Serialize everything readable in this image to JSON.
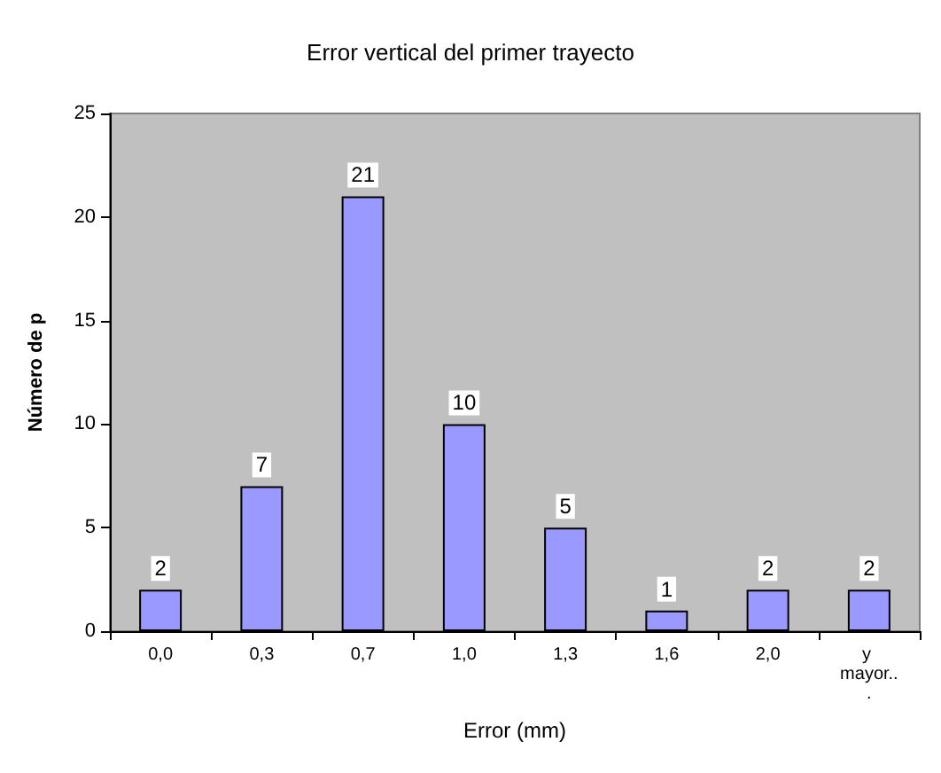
{
  "chart_data": {
    "type": "bar",
    "title": "Error vertical del primer trayecto",
    "xlabel": "Error (mm)",
    "ylabel": "Número de p",
    "categories": [
      "0,0",
      "0,3",
      "0,7",
      "1,0",
      "1,3",
      "1,6",
      "2,0",
      "y mayor..."
    ],
    "values": [
      2,
      7,
      21,
      10,
      5,
      1,
      2,
      2
    ],
    "color": "#9999ff",
    "ylim": [
      0,
      25
    ],
    "yticks": [
      0,
      5,
      10,
      15,
      20,
      25
    ],
    "grid": false,
    "data_labels": true
  }
}
